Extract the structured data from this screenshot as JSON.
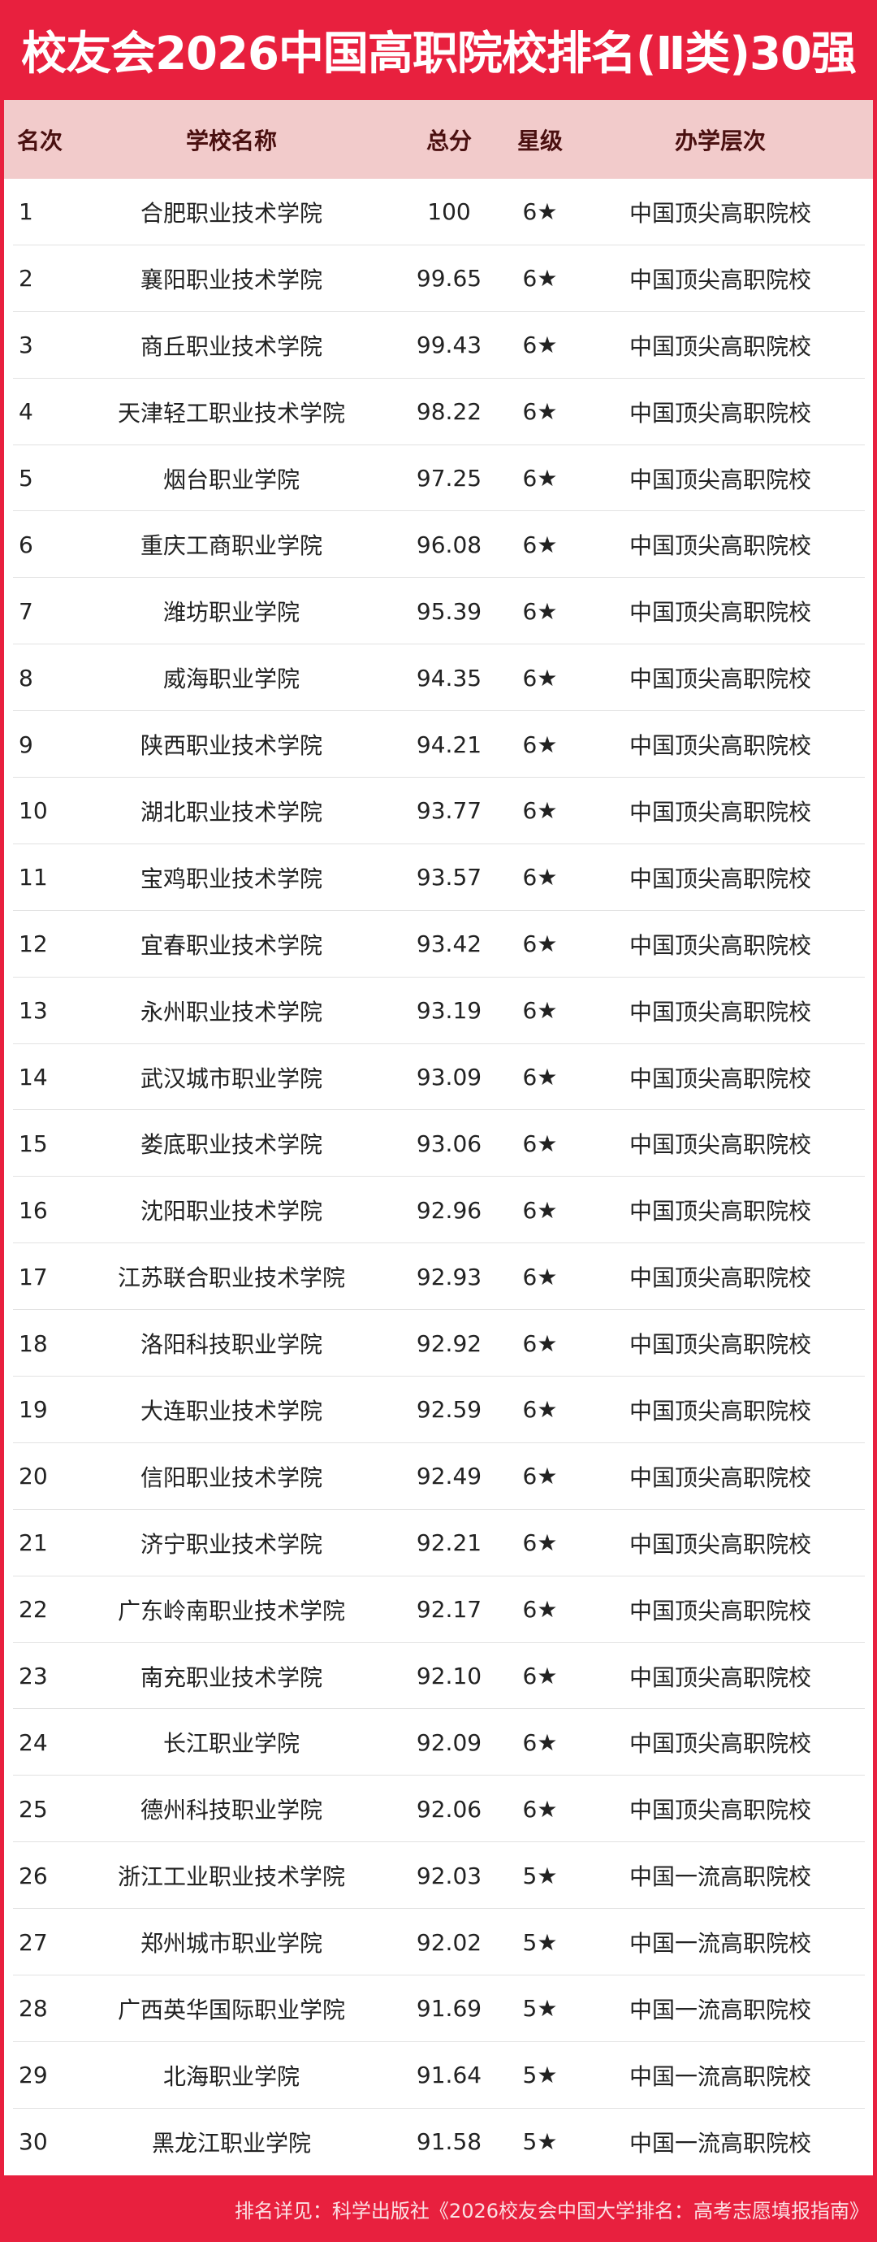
{
  "title": "校友会2026中国高职院校排名(Ⅱ类)30强",
  "colors": {
    "accent": "#e8203e",
    "header_bg": "#f2cbcb"
  },
  "table": {
    "headers": [
      "名次",
      "学校名称",
      "总分",
      "星级",
      "办学层次"
    ],
    "rows": [
      [
        "1",
        "合肥职业技术学院",
        "100",
        "6★",
        "中国顶尖高职院校"
      ],
      [
        "2",
        "襄阳职业技术学院",
        "99.65",
        "6★",
        "中国顶尖高职院校"
      ],
      [
        "3",
        "商丘职业技术学院",
        "99.43",
        "6★",
        "中国顶尖高职院校"
      ],
      [
        "4",
        "天津轻工职业技术学院",
        "98.22",
        "6★",
        "中国顶尖高职院校"
      ],
      [
        "5",
        "烟台职业学院",
        "97.25",
        "6★",
        "中国顶尖高职院校"
      ],
      [
        "6",
        "重庆工商职业学院",
        "96.08",
        "6★",
        "中国顶尖高职院校"
      ],
      [
        "7",
        "潍坊职业学院",
        "95.39",
        "6★",
        "中国顶尖高职院校"
      ],
      [
        "8",
        "威海职业学院",
        "94.35",
        "6★",
        "中国顶尖高职院校"
      ],
      [
        "9",
        "陕西职业技术学院",
        "94.21",
        "6★",
        "中国顶尖高职院校"
      ],
      [
        "10",
        "湖北职业技术学院",
        "93.77",
        "6★",
        "中国顶尖高职院校"
      ],
      [
        "11",
        "宝鸡职业技术学院",
        "93.57",
        "6★",
        "中国顶尖高职院校"
      ],
      [
        "12",
        "宜春职业技术学院",
        "93.42",
        "6★",
        "中国顶尖高职院校"
      ],
      [
        "13",
        "永州职业技术学院",
        "93.19",
        "6★",
        "中国顶尖高职院校"
      ],
      [
        "14",
        "武汉城市职业学院",
        "93.09",
        "6★",
        "中国顶尖高职院校"
      ],
      [
        "15",
        "娄底职业技术学院",
        "93.06",
        "6★",
        "中国顶尖高职院校"
      ],
      [
        "16",
        "沈阳职业技术学院",
        "92.96",
        "6★",
        "中国顶尖高职院校"
      ],
      [
        "17",
        "江苏联合职业技术学院",
        "92.93",
        "6★",
        "中国顶尖高职院校"
      ],
      [
        "18",
        "洛阳科技职业学院",
        "92.92",
        "6★",
        "中国顶尖高职院校"
      ],
      [
        "19",
        "大连职业技术学院",
        "92.59",
        "6★",
        "中国顶尖高职院校"
      ],
      [
        "20",
        "信阳职业技术学院",
        "92.49",
        "6★",
        "中国顶尖高职院校"
      ],
      [
        "21",
        "济宁职业技术学院",
        "92.21",
        "6★",
        "中国顶尖高职院校"
      ],
      [
        "22",
        "广东岭南职业技术学院",
        "92.17",
        "6★",
        "中国顶尖高职院校"
      ],
      [
        "23",
        "南充职业技术学院",
        "92.10",
        "6★",
        "中国顶尖高职院校"
      ],
      [
        "24",
        "长江职业学院",
        "92.09",
        "6★",
        "中国顶尖高职院校"
      ],
      [
        "25",
        "德州科技职业学院",
        "92.06",
        "6★",
        "中国顶尖高职院校"
      ],
      [
        "26",
        "浙江工业职业技术学院",
        "92.03",
        "5★",
        "中国一流高职院校"
      ],
      [
        "27",
        "郑州城市职业学院",
        "92.02",
        "5★",
        "中国一流高职院校"
      ],
      [
        "28",
        "广西英华国际职业学院",
        "91.69",
        "5★",
        "中国一流高职院校"
      ],
      [
        "29",
        "北海职业学院",
        "91.64",
        "5★",
        "中国一流高职院校"
      ],
      [
        "30",
        "黑龙江职业学院",
        "91.58",
        "5★",
        "中国一流高职院校"
      ]
    ]
  },
  "footer": "排名详见：科学出版社《2026校友会中国大学排名：高考志愿填报指南》"
}
